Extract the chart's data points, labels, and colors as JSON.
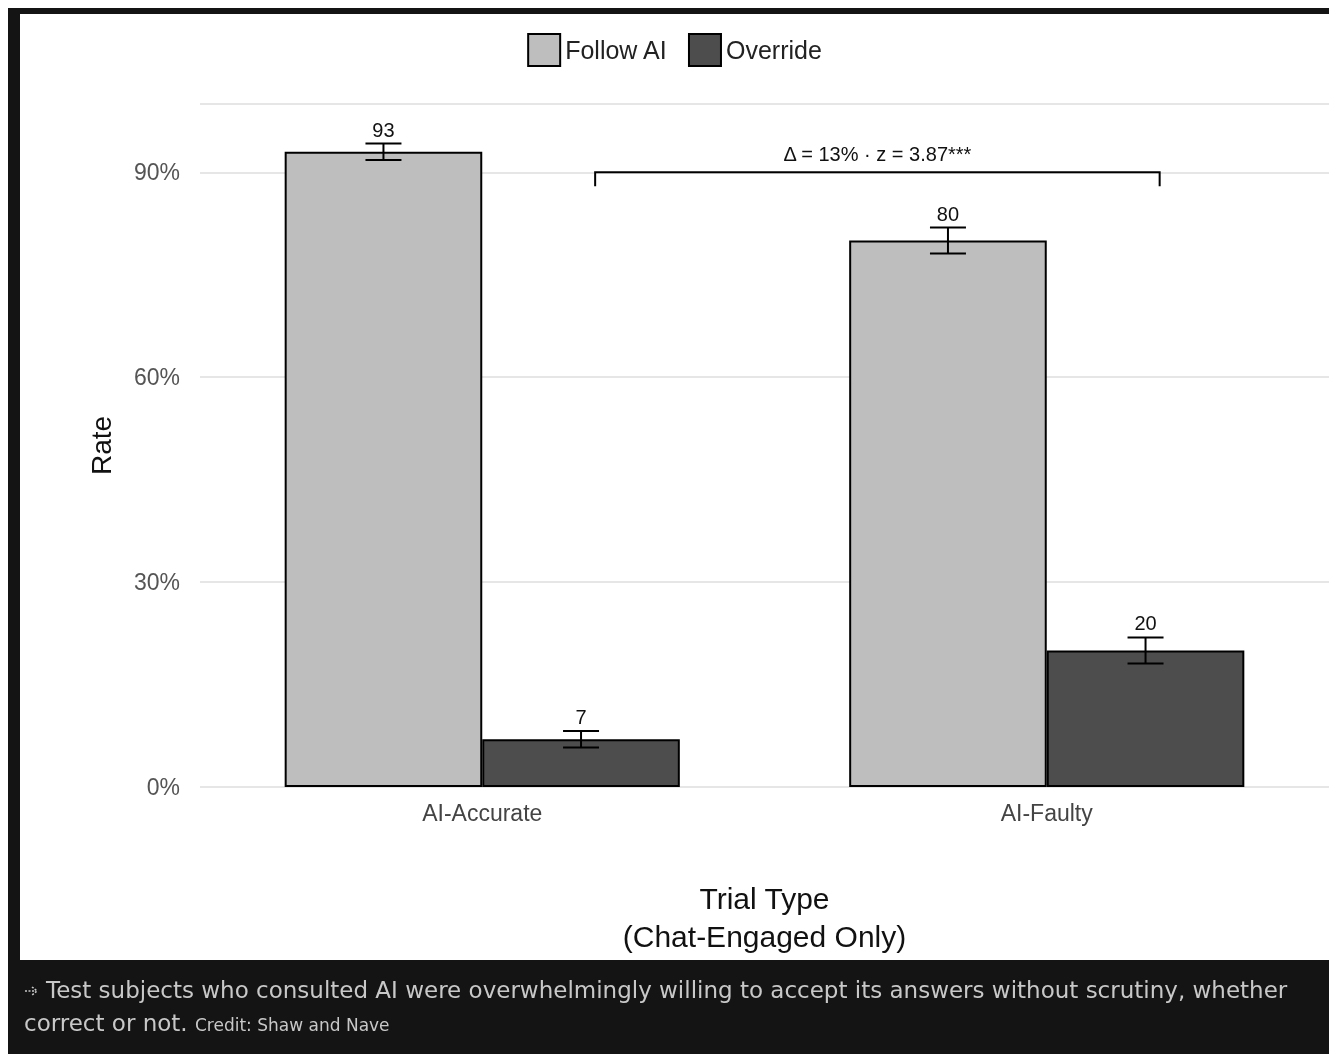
{
  "chart_data": {
    "type": "bar",
    "categories": [
      "AI-Accurate",
      "AI-Faulty"
    ],
    "series": [
      {
        "name": "Follow AI",
        "color": "#bebebe",
        "values": [
          93,
          80
        ],
        "errors": [
          1.2,
          1.9
        ]
      },
      {
        "name": "Override",
        "color": "#4d4d4d",
        "values": [
          7,
          20
        ],
        "errors": [
          1.2,
          1.9
        ]
      }
    ],
    "data_labels": true,
    "xlabel": "Trial Type\n(Chat-Engaged Only)",
    "ylabel": "Rate",
    "ylim": [
      0,
      100
    ],
    "yticks": [
      {
        "value": 0,
        "label": "0%"
      },
      {
        "value": 30,
        "label": "30%"
      },
      {
        "value": 60,
        "label": "60%"
      },
      {
        "value": 90,
        "label": "90%"
      },
      {
        "value": 100,
        "label": null
      }
    ],
    "grid": "y",
    "legend": "top",
    "annotations": [
      "Δ = 13% · z = 3.87***",
      "Test subjects who consulted AI were overwhelmingly willing to accept its answers without scrutiny, whether correct or not.",
      "Credit: Shaw and Nave"
    ]
  }
}
